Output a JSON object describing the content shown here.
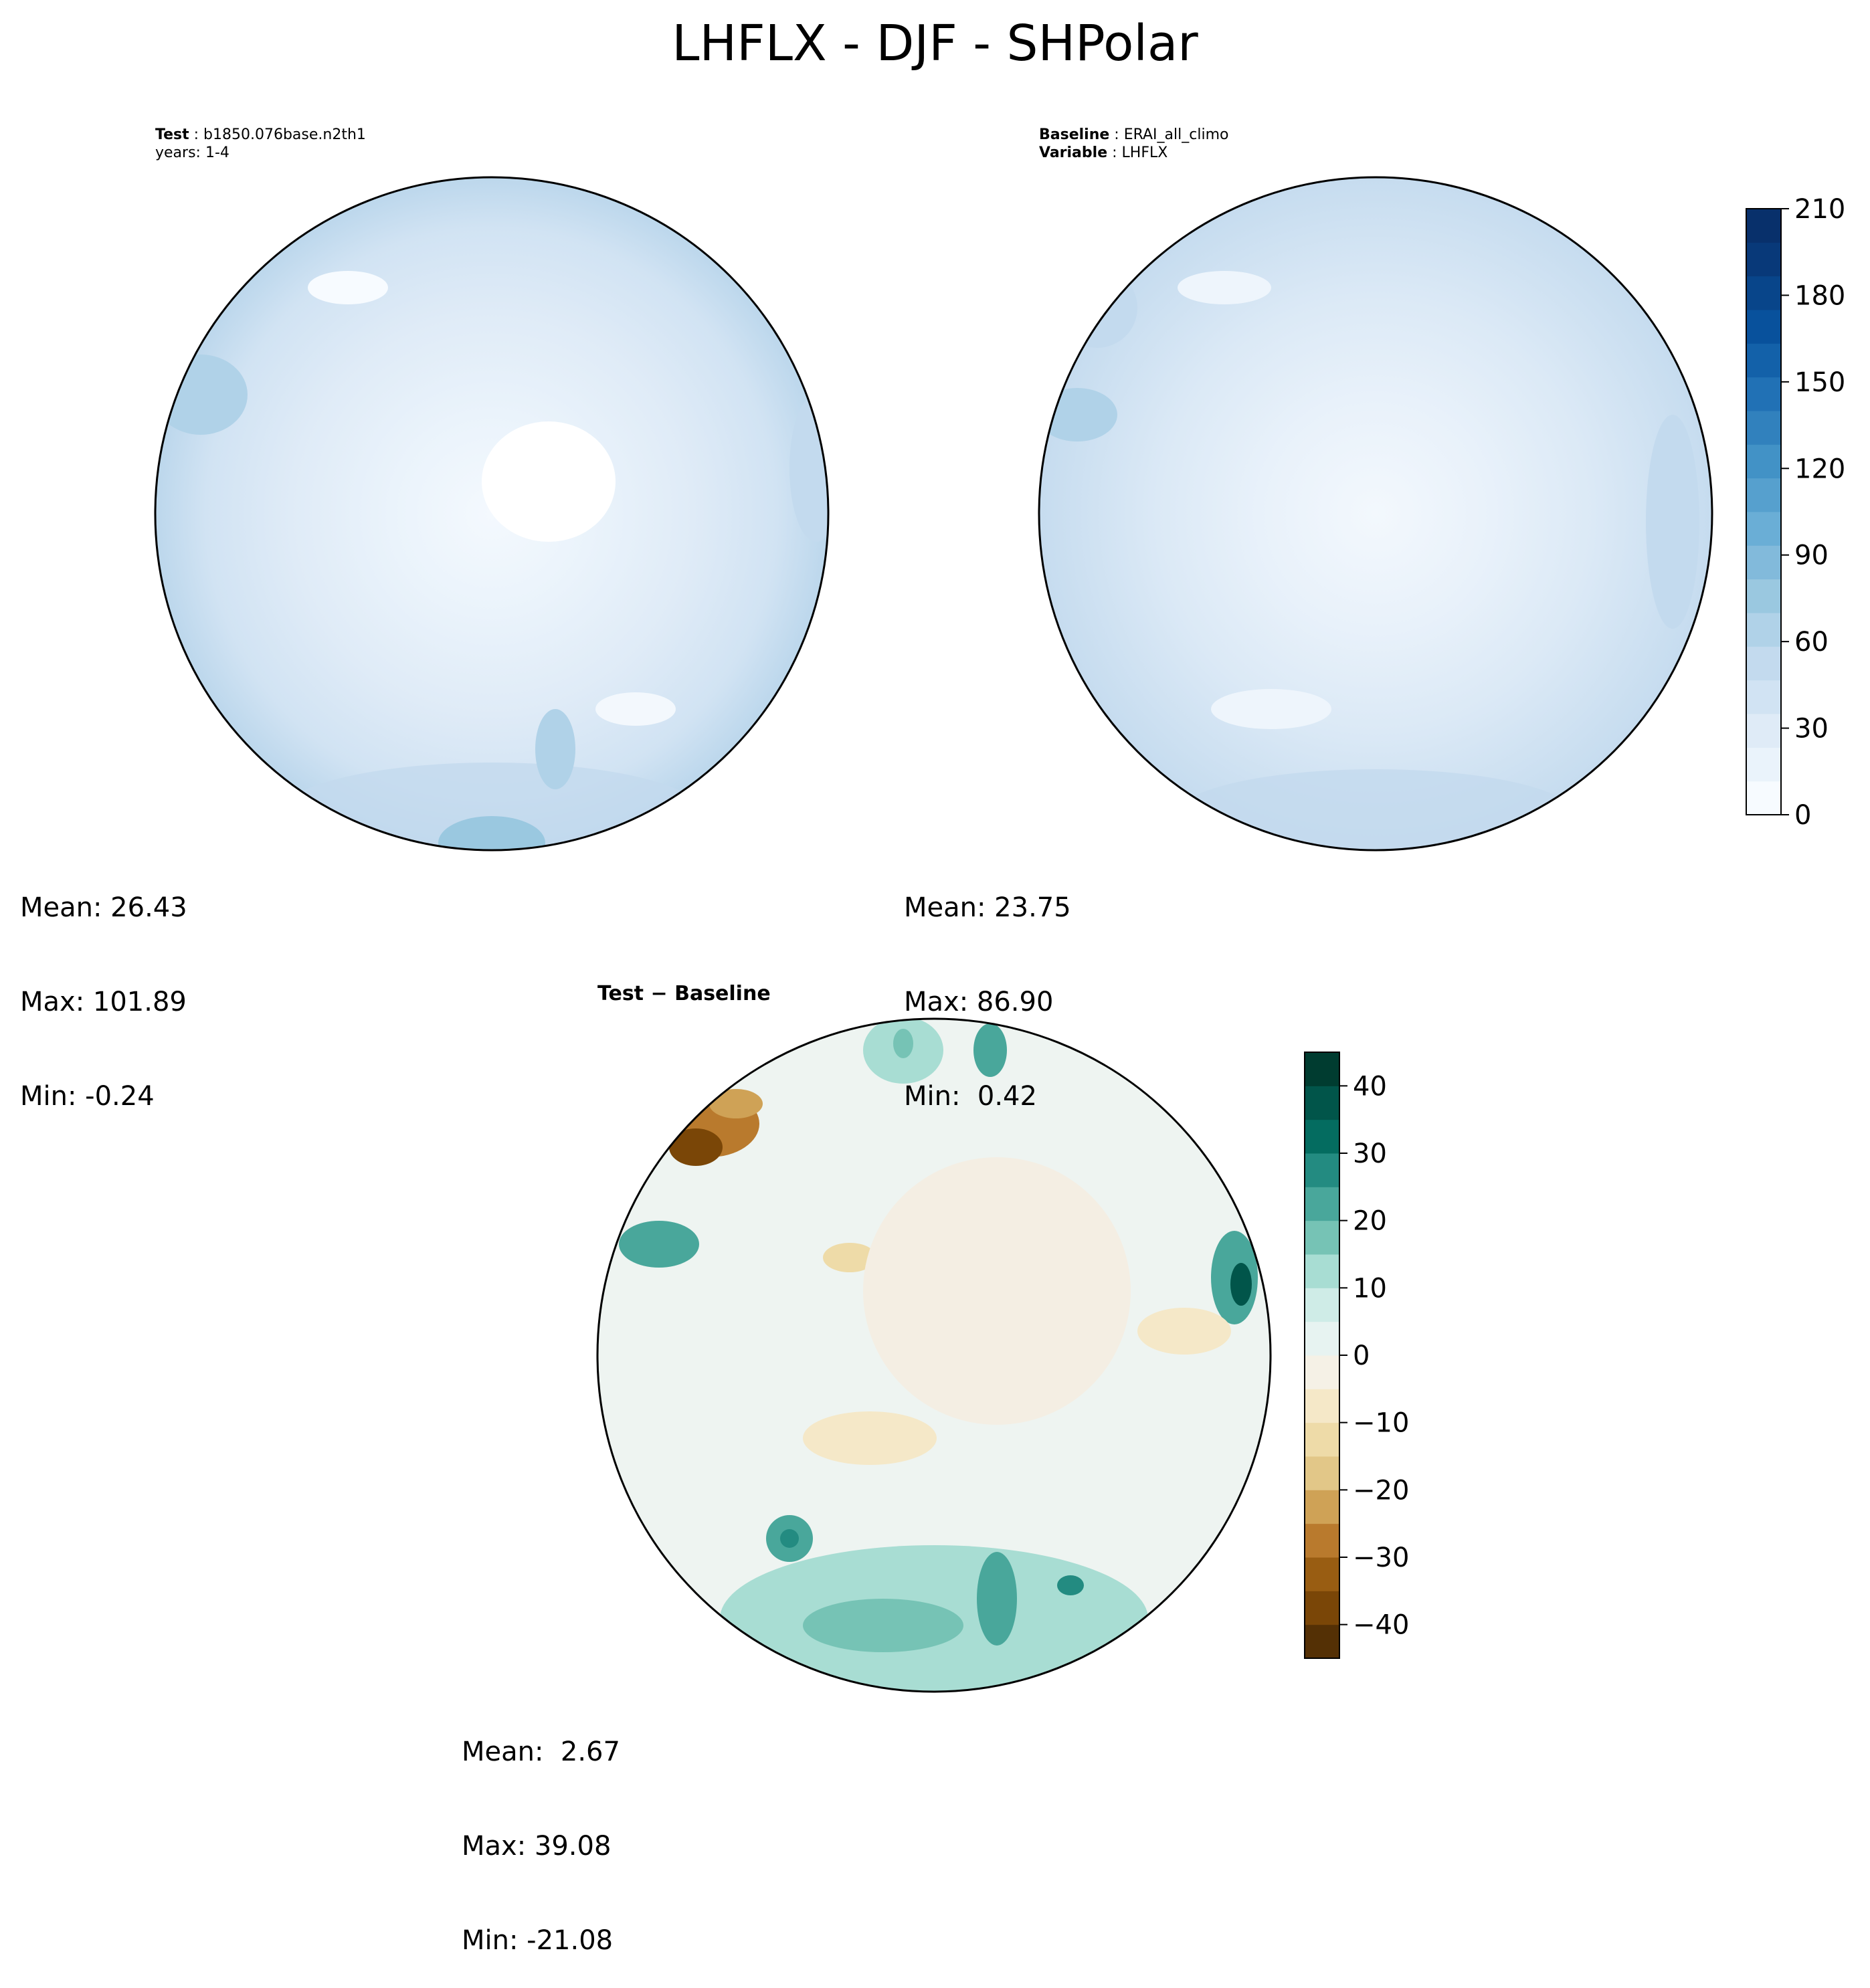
{
  "title": "LHFLX - DJF - SHPolar",
  "test_panel": {
    "label_key": "Test",
    "label_value": "b1850.076base.n2th1",
    "years": "years: 1-4",
    "stats": {
      "mean": "Mean: 26.43",
      "max": "Max: 101.89",
      "min": "Min: -0.24"
    }
  },
  "baseline_panel": {
    "label_key": "Baseline",
    "label_value": "ERAI_all_climo",
    "variable_key": "Variable",
    "variable_value": "LHFLX",
    "stats": {
      "mean": "Mean: 23.75",
      "max": "Max: 86.90",
      "min": "Min:  0.42"
    }
  },
  "diff_panel": {
    "title_test": "Test",
    "title_sep": "−",
    "title_base": "Baseline",
    "stats": {
      "mean": "Mean:  2.67",
      "max": "Max: 39.08",
      "min": "Min: -21.08"
    }
  },
  "colorbar_main": {
    "ticks": [
      "0",
      "30",
      "60",
      "90",
      "120",
      "150",
      "180",
      "210"
    ],
    "range": [
      0,
      210
    ],
    "colormap": "Blues",
    "colors": [
      "#f7fbff",
      "#eaf3fb",
      "#dfebf7",
      "#d1e3f3",
      "#c3daee",
      "#b0d2e8",
      "#9ac8e0",
      "#82badb",
      "#6aaed6",
      "#56a0ce",
      "#4292c6",
      "#3181bd",
      "#2171b5",
      "#1361a9",
      "#08519c",
      "#08458a",
      "#083979",
      "#08306b"
    ]
  },
  "colorbar_diff": {
    "ticks": [
      "40",
      "30",
      "20",
      "10",
      "0",
      "−10",
      "−20",
      "−30",
      "−40"
    ],
    "range": [
      -45,
      45
    ],
    "colormap": "BrBG",
    "colors": [
      "#543005",
      "#7a4607",
      "#995d12",
      "#b97a2d",
      "#cfa256",
      "#e2c788",
      "#eedba8",
      "#f5e8c8",
      "#f5f1e6",
      "#e7f3f1",
      "#cfece7",
      "#a8ddd3",
      "#76c3b5",
      "#49a79b",
      "#238b81",
      "#046c60",
      "#01554a",
      "#003c30"
    ]
  },
  "chart_data": [
    {
      "type": "heatmap",
      "projection": "south-polar stereographic",
      "title": "Test : b1850.076base.n2th1",
      "subtitle": "years: 1-4",
      "stats": {
        "mean": 26.43,
        "max": 101.89,
        "min": -0.24
      },
      "levels": [
        0,
        210
      ],
      "colormap": "Blues"
    },
    {
      "type": "heatmap",
      "projection": "south-polar stereographic",
      "title": "Baseline : ERAI_all_climo",
      "subtitle": "Variable : LHFLX",
      "stats": {
        "mean": 23.75,
        "max": 86.9,
        "min": 0.42
      },
      "levels": [
        0,
        210
      ],
      "colormap": "Blues"
    },
    {
      "type": "heatmap",
      "projection": "south-polar stereographic",
      "title": "Test − Baseline",
      "stats": {
        "mean": 2.67,
        "max": 39.08,
        "min": -21.08
      },
      "levels": [
        -45,
        45
      ],
      "colormap": "BrBG"
    }
  ]
}
